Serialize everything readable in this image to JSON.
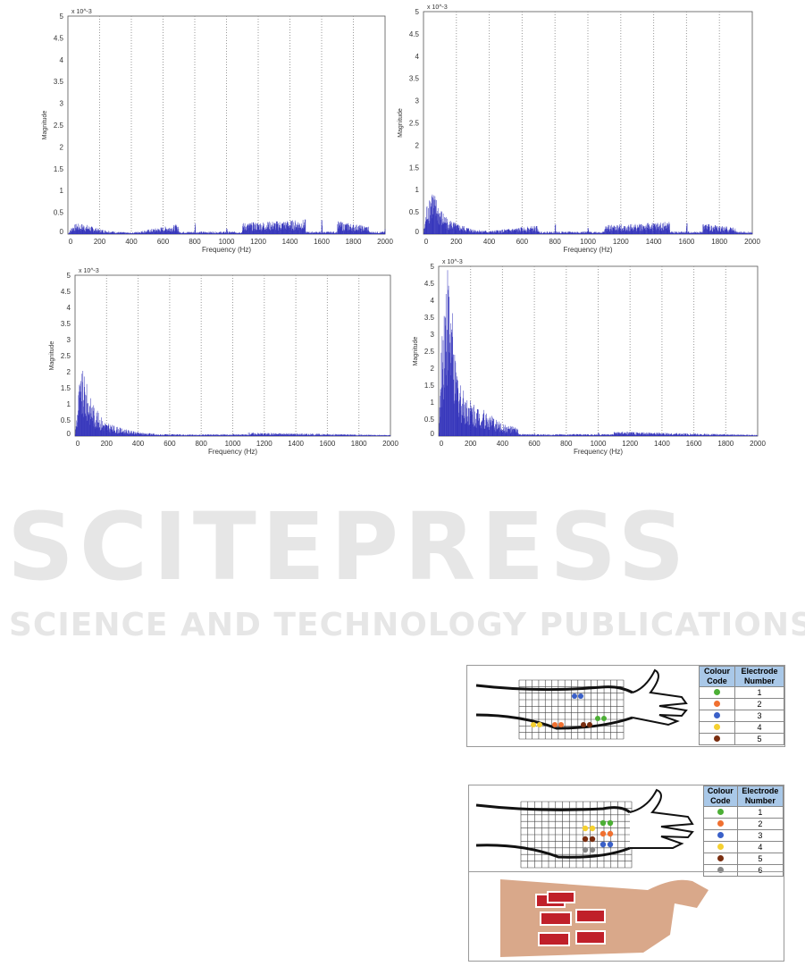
{
  "watermark": {
    "logo": "SCITEPRESS",
    "tagline": "SCIENCE AND TECHNOLOGY PUBLICATIONS"
  },
  "chart_data": [
    {
      "type": "line",
      "xlabel": "Frequency (Hz)",
      "ylabel": "Magnitude",
      "y_scale_label": "x 10^-3",
      "xlim": [
        0,
        2000
      ],
      "ylim": [
        0,
        5
      ],
      "grid": "vertical dotted",
      "color": "#2b2bb8",
      "xticks": [
        "0",
        "200",
        "400",
        "600",
        "800",
        "1000",
        "1200",
        "1400",
        "1600",
        "1800",
        "2000"
      ],
      "yticks": [
        "0",
        "0.5",
        "1",
        "1.5",
        "2",
        "2.5",
        "3",
        "3.5",
        "4",
        "4.5",
        "5"
      ],
      "x": [
        0,
        25,
        50,
        100,
        150,
        200,
        300,
        400,
        800,
        1000,
        1600,
        2000
      ],
      "y": [
        0,
        0.15,
        0.2,
        0.2,
        0.15,
        0.1,
        0.05,
        0.03,
        0.25,
        0.2,
        0.3,
        0.1
      ]
    },
    {
      "type": "line",
      "xlabel": "Frequency (Hz)",
      "ylabel": "Magnitude",
      "y_scale_label": "x 10^-3",
      "xlim": [
        0,
        2000
      ],
      "ylim": [
        0,
        5
      ],
      "grid": "vertical dotted",
      "color": "#2b2bb8",
      "xticks": [
        "0",
        "200",
        "400",
        "600",
        "800",
        "1000",
        "1200",
        "1400",
        "1600",
        "1800",
        "2000"
      ],
      "yticks": [
        "0",
        "0.5",
        "1",
        "1.5",
        "2",
        "2.5",
        "3",
        "3.5",
        "4",
        "4.5",
        "5"
      ],
      "x": [
        0,
        25,
        50,
        100,
        150,
        200,
        300,
        400,
        800,
        1000,
        1600,
        2000
      ],
      "y": [
        0,
        0.7,
        0.9,
        0.5,
        0.3,
        0.2,
        0.1,
        0.06,
        0.2,
        0.15,
        0.25,
        0.08
      ]
    },
    {
      "type": "line",
      "xlabel": "Frequency (Hz)",
      "ylabel": "Magnitude",
      "y_scale_label": "x 10^-3",
      "xlim": [
        0,
        2000
      ],
      "ylim": [
        0,
        5
      ],
      "grid": "vertical dotted",
      "color": "#2b2bb8",
      "xticks": [
        "0",
        "200",
        "400",
        "600",
        "800",
        "1000",
        "1200",
        "1400",
        "1600",
        "1800",
        "2000"
      ],
      "yticks": [
        "0",
        "0.5",
        "1",
        "1.5",
        "2",
        "2.5",
        "3",
        "3.5",
        "4",
        "4.5",
        "5"
      ],
      "x": [
        0,
        25,
        50,
        100,
        150,
        200,
        300,
        400,
        600,
        800,
        1000,
        2000
      ],
      "y": [
        0,
        1.4,
        1.7,
        1.0,
        0.6,
        0.35,
        0.2,
        0.1,
        0.05,
        0.04,
        0.1,
        0.03
      ]
    },
    {
      "type": "line",
      "xlabel": "Frequency (Hz)",
      "ylabel": "Magnitude",
      "y_scale_label": "x 10^-3",
      "xlim": [
        0,
        2000
      ],
      "ylim": [
        0,
        5
      ],
      "grid": "vertical dotted",
      "color": "#2b2bb8",
      "xticks": [
        "0",
        "200",
        "400",
        "600",
        "800",
        "1000",
        "1200",
        "1400",
        "1600",
        "1800",
        "2000"
      ],
      "yticks": [
        "0",
        "0.5",
        "1",
        "1.5",
        "2",
        "2.5",
        "3",
        "3.5",
        "4",
        "4.5",
        "5"
      ],
      "x": [
        0,
        25,
        50,
        80,
        100,
        150,
        200,
        300,
        400,
        600,
        800,
        1000,
        2000
      ],
      "y": [
        0,
        3.2,
        4.6,
        3.5,
        2.0,
        1.2,
        0.9,
        0.6,
        0.3,
        0.1,
        0.06,
        0.12,
        0.03
      ]
    }
  ],
  "figure_a": {
    "headers": [
      "Colour Code",
      "Electrode Number"
    ],
    "rows": [
      {
        "color": "#4caf35",
        "num": "1"
      },
      {
        "color": "#f07030",
        "num": "2"
      },
      {
        "color": "#3a60c8",
        "num": "3"
      },
      {
        "color": "#f5d030",
        "num": "4"
      },
      {
        "color": "#7a2e10",
        "num": "5"
      }
    ]
  },
  "figure_b": {
    "headers": [
      "Colour Code",
      "Electrode Number"
    ],
    "rows": [
      {
        "color": "#4caf35",
        "num": "1"
      },
      {
        "color": "#f07030",
        "num": "2"
      },
      {
        "color": "#3a60c8",
        "num": "3"
      },
      {
        "color": "#f5d030",
        "num": "4"
      },
      {
        "color": "#7a2e10",
        "num": "5"
      },
      {
        "color": "#888888",
        "num": "6"
      }
    ]
  }
}
